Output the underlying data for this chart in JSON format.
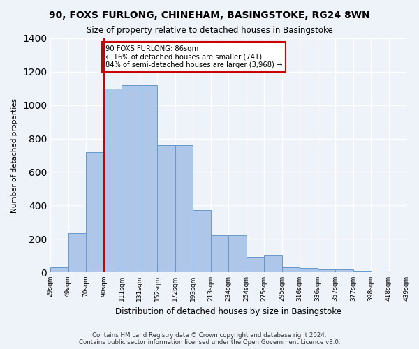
{
  "title": "90, FOXS FURLONG, CHINEHAM, BASINGSTOKE, RG24 8WN",
  "subtitle": "Size of property relative to detached houses in Basingstoke",
  "xlabel": "Distribution of detached houses by size in Basingstoke",
  "ylabel": "Number of detached properties",
  "property_label": "90 FOXS FURLONG: 86sqm",
  "pct_smaller": 16,
  "n_smaller": 741,
  "pct_semi_larger": 84,
  "n_semi_larger": 3968,
  "bin_labels": [
    "29sqm",
    "49sqm",
    "70sqm",
    "90sqm",
    "111sqm",
    "131sqm",
    "152sqm",
    "172sqm",
    "193sqm",
    "213sqm",
    "234sqm",
    "254sqm",
    "275sqm",
    "295sqm",
    "316sqm",
    "336sqm",
    "357sqm",
    "377sqm",
    "398sqm",
    "418sqm",
    "439sqm"
  ],
  "bar_heights": [
    30,
    235,
    720,
    1100,
    1120,
    1120,
    760,
    760,
    370,
    220,
    220,
    90,
    100,
    30,
    25,
    15,
    15,
    10,
    5,
    0
  ],
  "bar_color": "#aec6e8",
  "bar_edge_color": "#6699cc",
  "vline_color": "#cc0000",
  "annotation_box_color": "#cc0000",
  "background_color": "#eef2f9",
  "grid_color": "#ffffff",
  "ylim": [
    0,
    1400
  ],
  "vline_bin_index": 3,
  "footer_line1": "Contains HM Land Registry data © Crown copyright and database right 2024.",
  "footer_line2": "Contains public sector information licensed under the Open Government Licence v3.0."
}
